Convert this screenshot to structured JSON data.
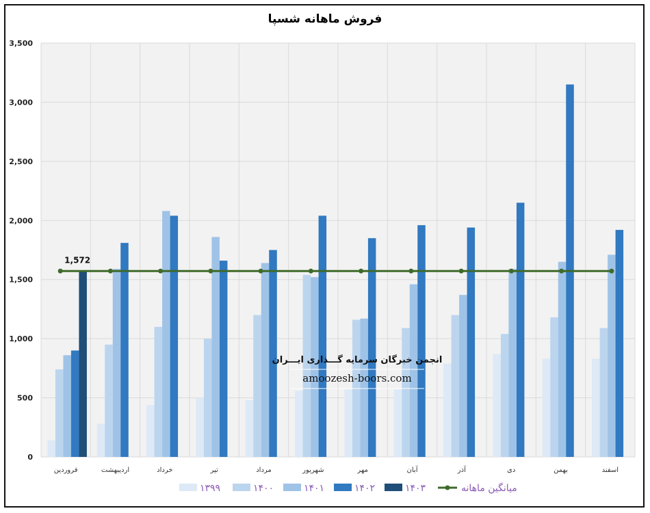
{
  "chart_data": {
    "type": "bar",
    "title": "فروش ماهانه شسپا",
    "categories": [
      "فروردین",
      "اردیبهشت",
      "خرداد",
      "تیر",
      "مرداد",
      "شهریور",
      "مهر",
      "آبان",
      "آذر",
      "دی",
      "بهمن",
      "اسفند"
    ],
    "series": [
      {
        "name": "۱۳۹۹",
        "color": "#dde9f6",
        "values": [
          140,
          280,
          440,
          500,
          480,
          560,
          570,
          570,
          790,
          870,
          830,
          830
        ]
      },
      {
        "name": "۱۴۰۰",
        "color": "#bcd5ee",
        "values": [
          740,
          950,
          1100,
          1000,
          1200,
          1540,
          1160,
          1090,
          1200,
          1040,
          1180,
          1090
        ]
      },
      {
        "name": "۱۴۰۱",
        "color": "#9fc3e7",
        "values": [
          860,
          1590,
          2080,
          1860,
          1640,
          1520,
          1170,
          1460,
          1370,
          1590,
          1650,
          1710
        ]
      },
      {
        "name": "۱۴۰۲",
        "color": "#3179c0",
        "values": [
          900,
          1810,
          2040,
          1660,
          1750,
          2040,
          1850,
          1960,
          1940,
          2150,
          3150,
          1920
        ]
      },
      {
        "name": "۱۴۰۳",
        "color": "#1f4e79",
        "values": [
          1572,
          null,
          null,
          null,
          null,
          null,
          null,
          null,
          null,
          null,
          null,
          null
        ]
      }
    ],
    "average_line": {
      "name": "میانگین ماهانه",
      "value": 1572,
      "color": "#3f6a2b",
      "label": "1,572"
    },
    "yticks": [
      "0",
      "500",
      "1,000",
      "1,500",
      "2,000",
      "2,500",
      "3,000",
      "3,500"
    ],
    "ylim": [
      0,
      3500
    ],
    "grid": true,
    "legend_position": "bottom"
  },
  "watermark": {
    "line1": "انجمن خبرگان سرمایه گـــذاری ایـــران",
    "line2": "amoozesh-boors.com"
  }
}
